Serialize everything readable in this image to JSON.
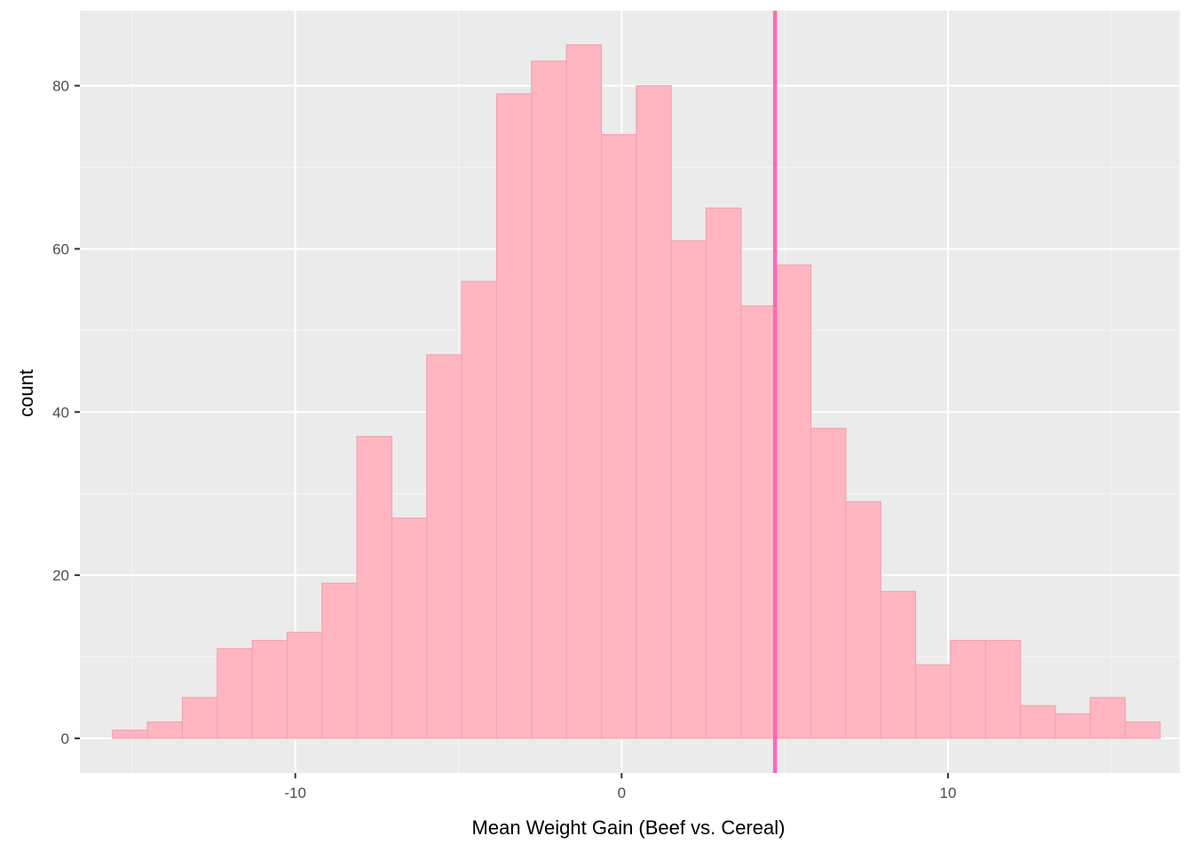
{
  "chart_data": {
    "type": "bar",
    "subtype": "histogram",
    "title": "",
    "xlabel": "Mean Weight Gain (Beef vs. Cereal)",
    "ylabel": "count",
    "xlim": [
      -16.6,
      17.1
    ],
    "ylim": [
      -4.25,
      89.2
    ],
    "x_ticks": [
      -10,
      0,
      10
    ],
    "x_tick_labels": [
      "-10",
      "0",
      "10"
    ],
    "y_ticks": [
      0,
      20,
      40,
      60,
      80
    ],
    "y_tick_labels": [
      "0",
      "20",
      "40",
      "60",
      "80"
    ],
    "grid": true,
    "legend": "none",
    "bin_start": -15.6,
    "bin_width": 1.07,
    "counts": [
      1,
      2,
      5,
      11,
      12,
      13,
      19,
      37,
      27,
      47,
      56,
      79,
      83,
      85,
      74,
      80,
      61,
      65,
      53,
      58,
      38,
      29,
      18,
      9,
      12,
      12,
      4,
      3,
      5,
      2
    ],
    "vline": {
      "x": 4.7,
      "color": "#ff69b4"
    },
    "colors": {
      "panel_background": "#ebebeb",
      "grid_major": "#ffffff",
      "grid_minor": "#f5f5f5",
      "bar_fill": "#ffb6c1",
      "bar_outline": "#f2a3b2",
      "vline": "#ff69b4",
      "tick": "#333333",
      "tick_text": "#4d4d4d"
    }
  }
}
